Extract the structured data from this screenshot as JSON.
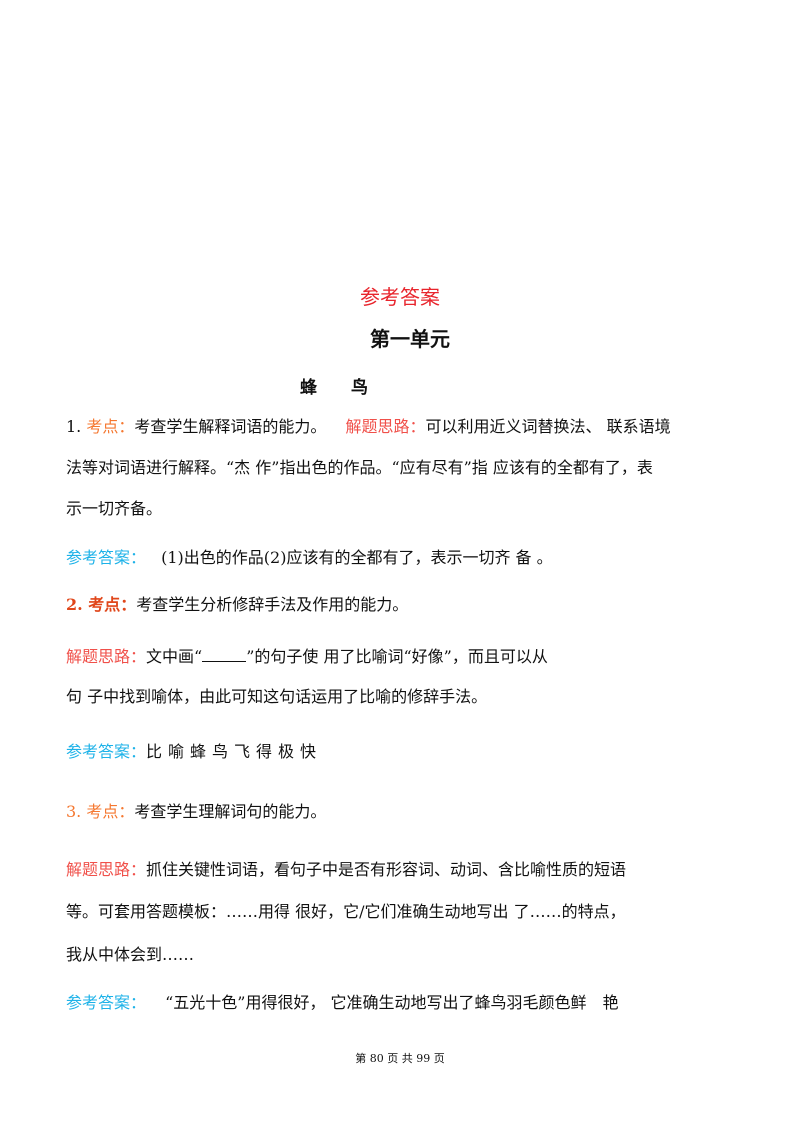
{
  "title": "参考答案",
  "unit": "第一单元",
  "lesson": "蜂　　鸟",
  "q1": {
    "num": "1.",
    "point_label": "考点：",
    "point": "考查学生解释词语的能力。",
    "idea_label": "解题思路：",
    "idea_line1": "可以利用近义词替换法、 联系语境",
    "idea_line2": "法等对词语进行解释。“杰 作”指出色的作品。“应有尽有”指 应该有的全都有了，表",
    "idea_line3": "示一切齐备。",
    "answer_label": "参考答案：",
    "answer": "(1)出色的作品(2)应该有的全都有了，表示一切齐 备 。"
  },
  "q2": {
    "point_label": "2. 考点：",
    "point": "考查学生分析修辞手法及作用的能力。",
    "idea_label": "解题思路：",
    "idea_line1a": "文中画“",
    "idea_line1b": "”的句子使 用了比喻词“好像”，而且可以从",
    "idea_line2": "句  子中找到喻体，由此可知这句话运用了比喻的修辞手法。",
    "answer_label": "参考答案：",
    "answer": "比喻蜂鸟飞得极快"
  },
  "q3": {
    "point_label": "3. 考点：",
    "point": "考查学生理解词句的能力。",
    "idea_label": "解题思路：",
    "idea_line1": "抓住关键性词语，看句子中是否有形容词、动词、含比喻性质的短语",
    "idea_line2": "等。可套用答题模板：……用得 很好，它/它们准确生动地写出 了……的特点，",
    "idea_line3": "我从中体会到……",
    "answer_label": "参考答案：",
    "answer": "“五光十色”用得很好， 它准确生动地写出了蜂鸟羽毛颜色鲜　艳"
  },
  "footer": "第 80 页 共 99 页"
}
